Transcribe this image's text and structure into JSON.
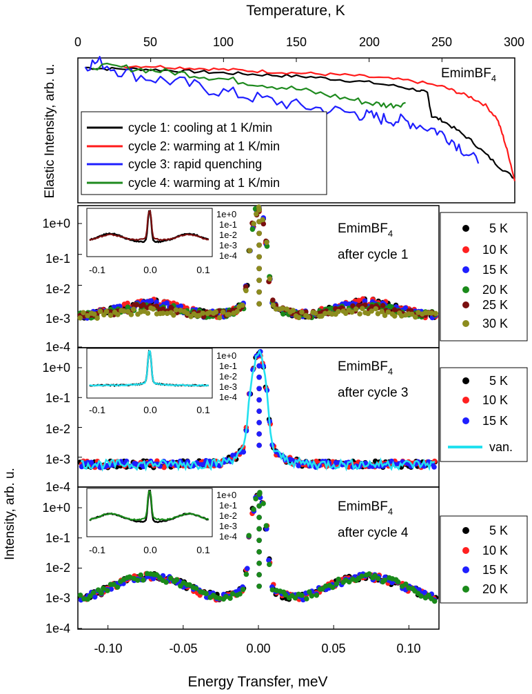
{
  "figure": {
    "title": ""
  },
  "top_axis": {
    "label": "Temperature, K",
    "ticks": [
      "0",
      "50",
      "100",
      "150",
      "200",
      "250",
      "300"
    ]
  },
  "x_axis": {
    "label": "Energy Transfer, meV",
    "ticks": [
      "-0.10",
      "-0.05",
      "0.00",
      "0.05",
      "0.10"
    ]
  },
  "y_labels": {
    "top": "Elastic Intensity, arb. u.",
    "bottom": "Intensity, arb. u."
  },
  "log_ticks": [
    "1e+0",
    "1e-1",
    "1e-2",
    "1e-3",
    "1e-4"
  ],
  "inset_x_ticks": [
    "-0.1",
    "0.0",
    "0.1"
  ],
  "compound": {
    "main": "EmimBF",
    "sub": "4"
  },
  "panel_labels": {
    "p1": "after cycle 1",
    "p2": "after cycle 3",
    "p3": "after cycle 4"
  },
  "colors": {
    "5K": "#000000",
    "10K": "#ff2020",
    "15K": "#1f1fff",
    "20K": "#1a8a1a",
    "25K": "#7a0f0f",
    "30K": "#8c8c1e",
    "van": "#22e0ef",
    "cycle1": "#000000",
    "cycle2": "#ff1a1a",
    "cycle3": "#1f1fff",
    "cycle4": "#1e8a1e"
  },
  "chart_data": [
    {
      "type": "line",
      "title": "",
      "xlabel": "Temperature, K",
      "ylabel": "Elastic Intensity, arb. u.",
      "xlim": [
        0,
        300
      ],
      "legend_placement": "bottom-left",
      "annotation": "EmimBF4",
      "series": [
        {
          "name": "cycle 1: cooling at 1 K/min",
          "color": "#000000",
          "x": [
            5,
            20,
            40,
            60,
            80,
            100,
            120,
            140,
            160,
            180,
            200,
            220,
            235,
            240,
            243,
            250,
            260,
            270,
            280,
            290,
            300
          ],
          "y": [
            0.96,
            0.95,
            0.95,
            0.94,
            0.93,
            0.92,
            0.91,
            0.9,
            0.89,
            0.87,
            0.85,
            0.82,
            0.79,
            0.77,
            0.6,
            0.57,
            0.5,
            0.42,
            0.32,
            0.22,
            0.14
          ]
        },
        {
          "name": "cycle 2: warming at 1 K/min",
          "color": "#ff1a1a",
          "x": [
            30,
            50,
            70,
            90,
            110,
            130,
            150,
            170,
            190,
            210,
            230,
            250,
            260,
            270,
            280,
            288,
            292,
            296,
            300
          ],
          "y": [
            0.97,
            0.97,
            0.96,
            0.95,
            0.94,
            0.93,
            0.92,
            0.91,
            0.9,
            0.88,
            0.86,
            0.82,
            0.78,
            0.74,
            0.68,
            0.58,
            0.45,
            0.3,
            0.12
          ]
        },
        {
          "name": "cycle 3: rapid quenching",
          "color": "#1f1fff",
          "x": [
            5,
            15,
            30,
            50,
            70,
            90,
            110,
            130,
            150,
            170,
            190,
            200,
            210,
            220,
            230,
            245,
            255,
            265,
            275
          ],
          "y": [
            0.98,
            1.0,
            0.93,
            0.88,
            0.85,
            0.8,
            0.76,
            0.72,
            0.68,
            0.65,
            0.62,
            0.6,
            0.58,
            0.57,
            0.55,
            0.5,
            0.44,
            0.35,
            0.25
          ]
        },
        {
          "name": "cycle 4: warming at 1 K/min",
          "color": "#1e8a1e",
          "x": [
            10,
            30,
            50,
            70,
            90,
            110,
            130,
            150,
            170,
            190,
            205,
            215,
            225
          ],
          "y": [
            0.97,
            0.96,
            0.94,
            0.92,
            0.89,
            0.86,
            0.83,
            0.8,
            0.76,
            0.72,
            0.69,
            0.68,
            0.7
          ]
        }
      ]
    },
    {
      "type": "scatter",
      "title": "",
      "annotation": "EmimBF4 after cycle 1",
      "xlabel": "Energy Transfer, meV",
      "ylabel": "Intensity, arb. u.",
      "xlim": [
        -0.12,
        0.12
      ],
      "ylim": [
        0.0001,
        4
      ],
      "yscale": "log",
      "legend_placement": "right",
      "series": [
        {
          "name": "5 K",
          "color": "#000000",
          "bump": 0.0018
        },
        {
          "name": "10 K",
          "color": "#ff2020",
          "bump": 0.0019
        },
        {
          "name": "15 K",
          "color": "#1f1fff",
          "bump": 0.0015
        },
        {
          "name": "20 K",
          "color": "#1a8a1a",
          "bump": 0.0011
        },
        {
          "name": "25 K",
          "color": "#7a0f0f",
          "bump": 0.0009
        },
        {
          "name": "30 K",
          "color": "#8c8c1e",
          "bump": 0.0004
        }
      ],
      "peak_center_mev": 0.0,
      "peak_height": 3.0,
      "baseline": 0.0011,
      "bump_center_mev": 0.072
    },
    {
      "type": "scatter",
      "title": "",
      "annotation": "EmimBF4 after cycle 3",
      "xlabel": "Energy Transfer, meV",
      "ylabel": "Intensity, arb. u.",
      "xlim": [
        -0.12,
        0.12
      ],
      "ylim": [
        0.0001,
        4
      ],
      "yscale": "log",
      "legend_placement": "right",
      "series": [
        {
          "name": "5 K",
          "color": "#000000"
        },
        {
          "name": "10 K",
          "color": "#ff2020"
        },
        {
          "name": "15 K",
          "color": "#1f1fff"
        },
        {
          "name": "van.",
          "color": "#22e0ef",
          "style": "line"
        }
      ],
      "peak_center_mev": 0.0,
      "peak_height": 3.0,
      "baseline": 0.0006
    },
    {
      "type": "scatter",
      "title": "",
      "annotation": "EmimBF4 after cycle 4",
      "xlabel": "Energy Transfer, meV",
      "ylabel": "Intensity, arb. u.",
      "xlim": [
        -0.12,
        0.12
      ],
      "ylim": [
        0.0001,
        4
      ],
      "yscale": "log",
      "legend_placement": "right",
      "series": [
        {
          "name": "5 K",
          "color": "#000000"
        },
        {
          "name": "10 K",
          "color": "#ff2020"
        },
        {
          "name": "15 K",
          "color": "#1f1fff"
        },
        {
          "name": "20 K",
          "color": "#1a8a1a"
        }
      ],
      "peak_center_mev": 0.0,
      "peak_height": 3.0,
      "baseline": 0.0009,
      "bump_center_mev": 0.072,
      "bump_height": 0.0044
    }
  ]
}
